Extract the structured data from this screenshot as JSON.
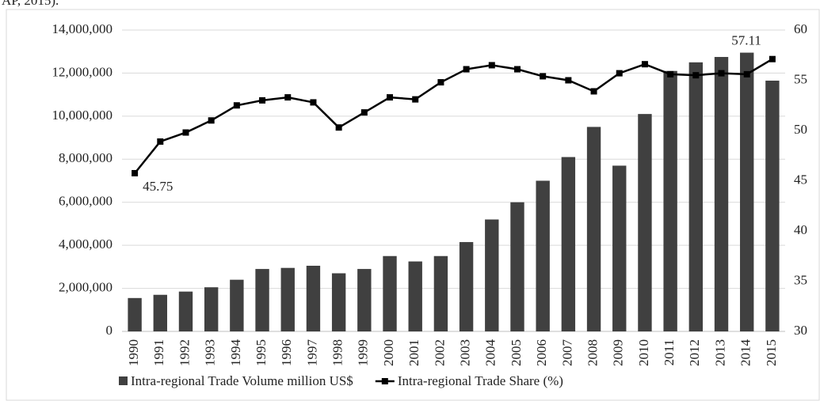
{
  "caption_fragment": "AP, 2015).",
  "chart_data": {
    "type": "bar",
    "categories": [
      "1990",
      "1991",
      "1992",
      "1993",
      "1994",
      "1995",
      "1996",
      "1997",
      "1998",
      "1999",
      "2000",
      "2001",
      "2002",
      "2003",
      "2004",
      "2005",
      "2006",
      "2007",
      "2008",
      "2009",
      "2010",
      "2011",
      "2012",
      "2013",
      "2014",
      "2015"
    ],
    "series": [
      {
        "name": "Intra-regional Trade Volume million US$",
        "type": "bar",
        "color": "#404040",
        "values": [
          1550000,
          1700000,
          1850000,
          2050000,
          2400000,
          2900000,
          2950000,
          3050000,
          2700000,
          2900000,
          3500000,
          3250000,
          3500000,
          4150000,
          5200000,
          6000000,
          7000000,
          8100000,
          9500000,
          7700000,
          10100000,
          12100000,
          12500000,
          12750000,
          12950000,
          11650000
        ]
      },
      {
        "name": "Intra-regional Trade Share (%)",
        "type": "line",
        "color": "#000000",
        "axis": "y2",
        "values": [
          45.75,
          48.9,
          49.8,
          51.0,
          52.5,
          53.0,
          53.3,
          52.8,
          50.3,
          51.8,
          53.3,
          53.1,
          54.8,
          56.1,
          56.5,
          56.1,
          55.4,
          55.0,
          53.9,
          55.7,
          56.6,
          55.6,
          55.5,
          55.7,
          55.6,
          57.11
        ],
        "value_labels": [
          "45.75",
          null,
          null,
          null,
          null,
          null,
          null,
          null,
          null,
          null,
          null,
          null,
          null,
          null,
          null,
          null,
          null,
          null,
          null,
          null,
          null,
          null,
          null,
          null,
          null,
          "57.11"
        ]
      }
    ],
    "ylim": [
      0,
      14000000
    ],
    "yticks": [
      0,
      {
        "value": 2000000,
        "label": "2,000,000"
      },
      {
        "value": 4000000,
        "label": "4,000,000"
      },
      {
        "value": 6000000,
        "label": "6,000,000"
      },
      {
        "value": 8000000,
        "label": "8,000,000"
      },
      {
        "value": 10000000,
        "label": "10,000,000"
      },
      {
        "value": 12000000,
        "label": "12,000,000"
      },
      {
        "value": 14000000,
        "label": "14,000,000"
      }
    ],
    "y2lim": [
      30,
      60
    ],
    "y2ticks": [
      30,
      35,
      40,
      45,
      50,
      55,
      60
    ],
    "grid": true,
    "legend": "bottom"
  }
}
